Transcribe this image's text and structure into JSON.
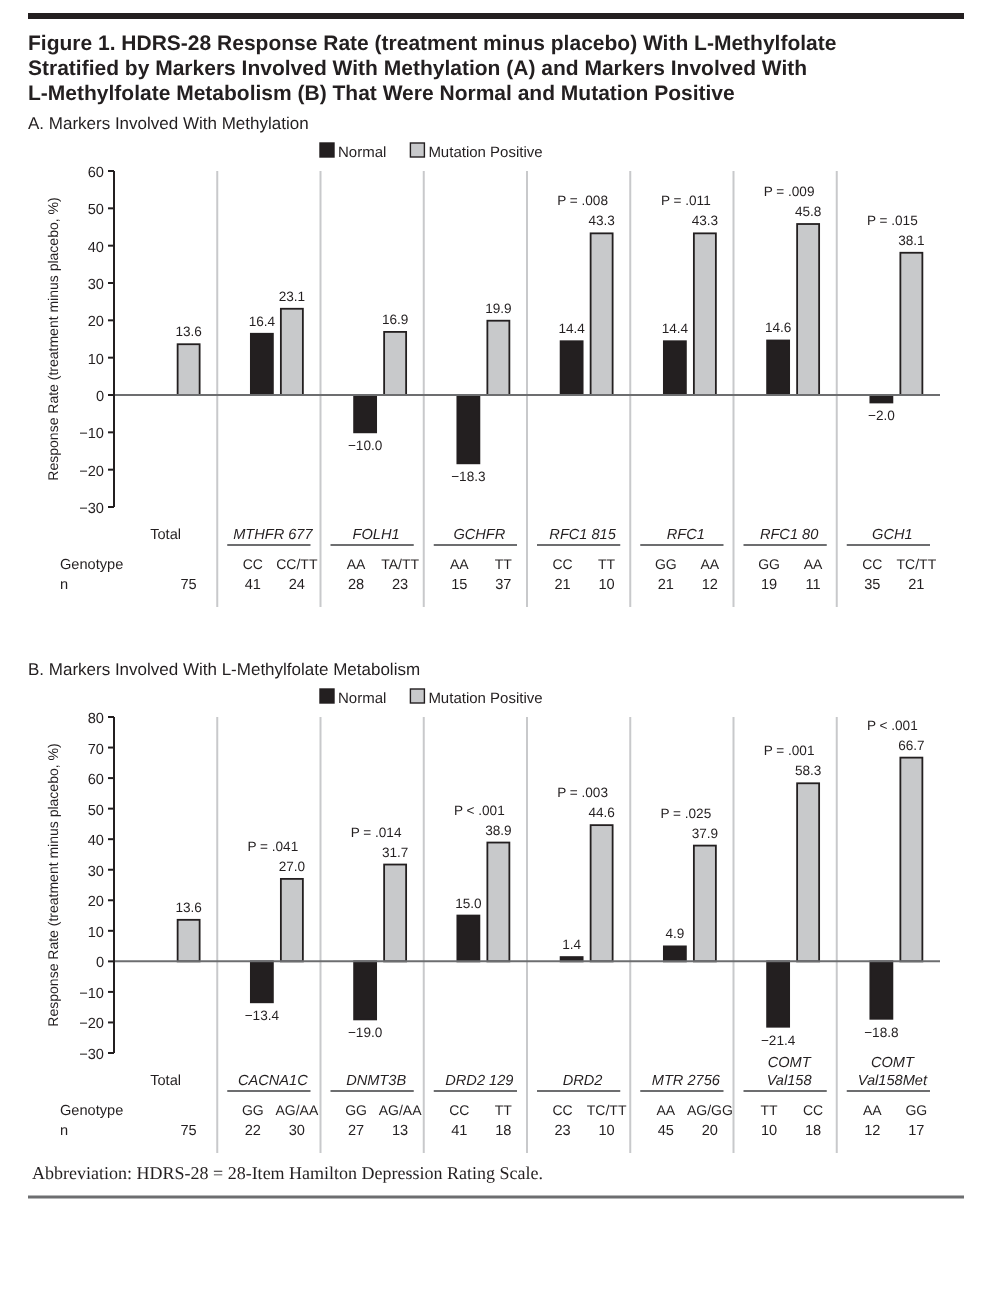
{
  "chart_data": [
    {
      "type": "bar",
      "title": "Figure 1. HDRS-28 Response Rate (treatment minus placebo) With L-Methylfolate Stratified by Markers Involved With Methylation (A) and Markers Involved With L-Methylfolate Metabolism (B) That Were Normal and Mutation Positive",
      "subtitle": "A. Markers Involved With Methylation",
      "ylabel": "Response Rate (treatment minus placebo, %)",
      "categories": [
        "Total",
        "MTHFR 677",
        "FOLH1",
        "GCHFR",
        "RFC1 815",
        "RFC1",
        "RFC1 80",
        "GCH1"
      ],
      "series": [
        {
          "name": "Normal",
          "color": "#231f20",
          "values": [
            null,
            16.4,
            -10.0,
            -18.3,
            14.4,
            14.4,
            14.6,
            -2.0
          ],
          "value_labels": [
            null,
            "16.4",
            "−10.0",
            "−18.3",
            "14.4",
            "14.4",
            "14.6",
            "−2.0"
          ]
        },
        {
          "name": "Mutation Positive",
          "color": "#c8c9cb",
          "values": [
            13.6,
            23.1,
            16.9,
            19.9,
            43.3,
            43.3,
            45.8,
            38.1
          ],
          "value_labels": [
            "13.6",
            "23.1",
            "16.9",
            "19.9",
            "43.3",
            "43.3",
            "45.8",
            "38.1"
          ]
        }
      ],
      "ylim": [
        -30,
        60
      ],
      "yticks": [
        {
          "value": -30,
          "label": "−30"
        },
        {
          "value": -20,
          "label": "−20"
        },
        {
          "value": -10,
          "label": "−10"
        },
        0,
        10,
        20,
        30,
        40,
        50,
        60
      ],
      "grid": "x",
      "legend": "top",
      "annotations": [
        "Genotype",
        "n",
        "75",
        "CC",
        "CC/TT",
        "41",
        "24",
        "AA",
        "TA/TT",
        "28",
        "23",
        "AA",
        "TT",
        "15",
        "37",
        "CC",
        "TT",
        "21",
        "10",
        "GG",
        "AA",
        "21",
        "12",
        "GG",
        "AA",
        "19",
        "11",
        "CC",
        "TC/TT",
        "35",
        "21",
        {
          "text": "P = .008",
          "x": "RFC1 815",
          "y": 43.3
        },
        {
          "text": "P = .011",
          "x": "RFC1",
          "y": 43.3
        },
        {
          "text": "P = .009",
          "x": "RFC1 80",
          "y": 45.8
        },
        {
          "text": "P = .015",
          "x": "GCH1",
          "y": 38.1
        }
      ]
    },
    {
      "type": "bar",
      "subtitle": "B. Markers Involved With L-Methylfolate Metabolism",
      "ylabel": "Response Rate (treatment minus placebo, %)",
      "categories": [
        "Total",
        "CACNA1C",
        "DNMT3B",
        "DRD2 129",
        "DRD2",
        "MTR 2756",
        "COMT Val158",
        "COMT Val158Met"
      ],
      "series": [
        {
          "name": "Normal",
          "color": "#231f20",
          "values": [
            null,
            -13.4,
            -19.0,
            15.0,
            1.4,
            4.9,
            -21.4,
            -18.8
          ],
          "value_labels": [
            null,
            "−13.4",
            "−19.0",
            "15.0",
            "1.4",
            "4.9",
            "−21.4",
            "−18.8"
          ]
        },
        {
          "name": "Mutation Positive",
          "color": "#c8c9cb",
          "values": [
            13.6,
            27.0,
            31.7,
            38.9,
            44.6,
            37.9,
            58.3,
            66.7
          ],
          "value_labels": [
            "13.6",
            "27.0",
            "31.7",
            "38.9",
            "44.6",
            "37.9",
            "58.3",
            "66.7"
          ]
        }
      ],
      "ylim": [
        -30,
        80
      ],
      "yticks": [
        {
          "value": -30,
          "label": "−30"
        },
        {
          "value": -20,
          "label": "−20"
        },
        {
          "value": -10,
          "label": "−10"
        },
        0,
        10,
        20,
        30,
        40,
        50,
        60,
        70,
        80
      ],
      "grid": "x",
      "legend": "top",
      "annotations": [
        "Genotype",
        "n",
        "75",
        "GG",
        "AG/AA",
        "22",
        "30",
        "GG",
        "AG/AA",
        "27",
        "13",
        "CC",
        "TT",
        "41",
        "18",
        "CC",
        "TC/TT",
        "23",
        "10",
        "AA",
        "AG/GG",
        "45",
        "20",
        "TT",
        "CC",
        "10",
        "18",
        "AA",
        "GG",
        "12",
        "17",
        {
          "text": "P = .041",
          "x": "CACNA1C",
          "y": 27.0
        },
        {
          "text": "P = .014",
          "x": "DNMT3B",
          "y": 31.7
        },
        {
          "text": "P < .001",
          "x": "DRD2 129",
          "y": 38.9
        },
        {
          "text": "P = .003",
          "x": "DRD2",
          "y": 44.6
        },
        {
          "text": "P = .025",
          "x": "MTR 2756",
          "y": 37.9
        },
        {
          "text": "P = .001",
          "x": "COMT Val158",
          "y": 58.3
        },
        {
          "text": "P < .001",
          "x": "COMT Val158Met",
          "y": 66.7
        },
        "Abbreviation: HDRS-28 = 28-Item Hamilton Depression Rating Scale."
      ]
    }
  ]
}
